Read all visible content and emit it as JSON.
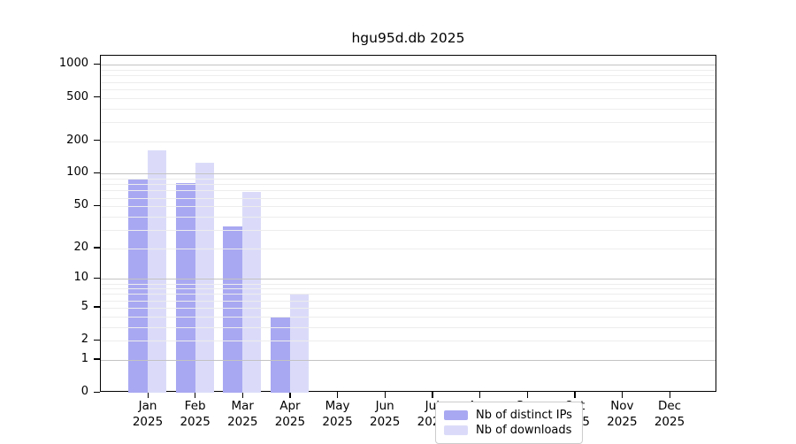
{
  "chart_data": {
    "type": "bar",
    "title": "hgu95d.db 2025",
    "categories": [
      "Jan",
      "Feb",
      "Mar",
      "Apr",
      "May",
      "Jun",
      "Jul",
      "Aug",
      "Sep",
      "Oct",
      "Nov",
      "Dec"
    ],
    "year": "2025",
    "series": [
      {
        "name": "Nb of distinct IPs",
        "color": "#a8a8f2",
        "values": [
          88,
          82,
          32,
          4,
          0,
          0,
          0,
          0,
          0,
          0,
          0,
          0
        ]
      },
      {
        "name": "Nb of downloads",
        "color": "#dbdbf9",
        "values": [
          165,
          127,
          68,
          7,
          0,
          0,
          0,
          0,
          0,
          0,
          0,
          0
        ]
      }
    ],
    "y_axis": {
      "scale": "log1p",
      "ticks": [
        0,
        1,
        2,
        5,
        10,
        20,
        50,
        100,
        200,
        500,
        1000
      ],
      "major_gridlines": [
        1,
        10,
        100,
        1000
      ],
      "range": [
        0,
        1000
      ]
    },
    "x_axis": {
      "label_format": "month over year"
    },
    "grid": true,
    "legend": {
      "position": "lower-center"
    }
  }
}
